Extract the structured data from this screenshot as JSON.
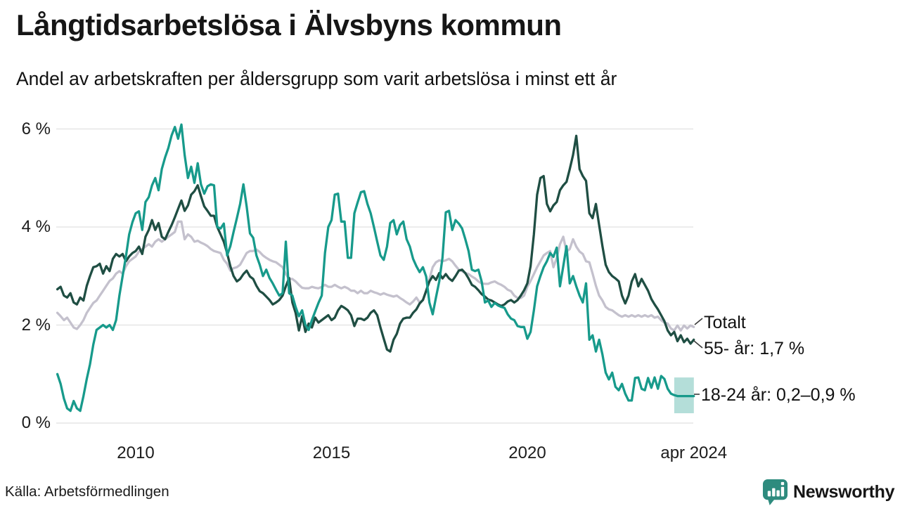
{
  "header": {
    "title": "Långtidsarbetslösa i Älvsbyns kommun",
    "subtitle": "Andel av arbetskraften per åldersgrupp som varit arbetslösa i minst ett år"
  },
  "source": {
    "label": "Källa: Arbetsförmedlingen"
  },
  "branding": {
    "logo_text": "Newsworthy",
    "logo_color": "#2e8b7e"
  },
  "chart_data": {
    "type": "line",
    "title": "Långtidsarbetslösa i Älvsbyns kommun",
    "subtitle": "Andel av arbetskraften per åldersgrupp som varit arbetslösa i minst ett år",
    "unit": "% av arbetskraften",
    "grid": true,
    "x_start": 2008.0,
    "x_step": 0.0833333,
    "x_end": 2024.25,
    "x_axis": {
      "ticks": [
        {
          "label": "2010",
          "t": 2010
        },
        {
          "label": "2015",
          "t": 2015
        },
        {
          "label": "2020",
          "t": 2020
        },
        {
          "label": "apr 2024",
          "t": 2024.25
        }
      ]
    },
    "y_axis": {
      "range": [
        0,
        6.2
      ],
      "ticks": [
        {
          "label": "6 %",
          "value": 6
        },
        {
          "label": "4 %",
          "value": 4
        },
        {
          "label": "2 %",
          "value": 2
        },
        {
          "label": "0 %",
          "value": 0
        }
      ]
    },
    "series": [
      {
        "id": "totalt",
        "name": "Totalt",
        "color": "#c4c1cd",
        "last_value": 1.96,
        "values": [
          2.25,
          2.18,
          2.1,
          2.15,
          2.05,
          1.95,
          1.92,
          2.0,
          2.1,
          2.25,
          2.35,
          2.45,
          2.5,
          2.6,
          2.7,
          2.8,
          2.9,
          2.95,
          3.05,
          3.1,
          3.05,
          3.2,
          3.3,
          3.35,
          3.4,
          3.5,
          3.55,
          3.6,
          3.65,
          3.6,
          3.7,
          3.75,
          3.7,
          3.75,
          3.8,
          3.85,
          3.9,
          4.11,
          4.11,
          3.75,
          3.85,
          3.8,
          3.7,
          3.72,
          3.68,
          3.65,
          3.61,
          3.55,
          3.51,
          3.49,
          3.47,
          3.33,
          3.25,
          3.11,
          3.16,
          3.18,
          3.23,
          3.35,
          3.47,
          3.51,
          3.51,
          3.54,
          3.49,
          3.42,
          3.37,
          3.33,
          3.3,
          3.28,
          3.23,
          3.18,
          3.04,
          2.94,
          2.94,
          2.89,
          2.82,
          2.76,
          2.75,
          2.75,
          2.78,
          2.76,
          2.75,
          2.78,
          2.82,
          2.78,
          2.78,
          2.82,
          2.78,
          2.75,
          2.78,
          2.75,
          2.7,
          2.7,
          2.65,
          2.7,
          2.65,
          2.65,
          2.7,
          2.67,
          2.65,
          2.62,
          2.65,
          2.62,
          2.6,
          2.58,
          2.6,
          2.55,
          2.51,
          2.46,
          2.42,
          2.48,
          2.56,
          2.46,
          2.51,
          2.69,
          2.94,
          3.18,
          3.28,
          3.32,
          3.3,
          3.32,
          3.35,
          3.3,
          3.21,
          3.13,
          3.1,
          3.06,
          3.04,
          2.99,
          2.95,
          2.89,
          2.85,
          2.84,
          2.84,
          2.87,
          2.89,
          2.85,
          2.82,
          2.78,
          2.72,
          2.69,
          2.6,
          2.55,
          2.55,
          2.6,
          2.78,
          2.9,
          3.04,
          3.18,
          3.3,
          3.42,
          3.47,
          3.51,
          3.18,
          3.37,
          3.65,
          3.8,
          3.5,
          3.55,
          3.75,
          3.6,
          3.5,
          3.45,
          3.3,
          3.28,
          3.05,
          2.8,
          2.6,
          2.5,
          2.37,
          2.32,
          2.3,
          2.25,
          2.2,
          2.17,
          2.2,
          2.17,
          2.2,
          2.17,
          2.2,
          2.17,
          2.2,
          2.17,
          2.2,
          2.15,
          2.17,
          2.1,
          2.05,
          2.03,
          1.93,
          1.89,
          1.99,
          1.89,
          1.99,
          1.93,
          1.99,
          1.96
        ]
      },
      {
        "id": "55-ar",
        "name": "55- år",
        "color": "#1f4e43",
        "last_value": 1.7,
        "values": [
          2.73,
          2.78,
          2.6,
          2.56,
          2.65,
          2.46,
          2.42,
          2.56,
          2.5,
          2.8,
          3.0,
          3.18,
          3.2,
          3.25,
          3.05,
          3.2,
          3.1,
          3.35,
          3.45,
          3.4,
          3.45,
          3.3,
          3.4,
          3.47,
          3.51,
          3.6,
          3.45,
          3.8,
          3.94,
          4.14,
          3.94,
          4.08,
          3.8,
          3.75,
          3.9,
          4.04,
          4.2,
          4.37,
          4.54,
          4.33,
          4.44,
          4.66,
          4.73,
          4.85,
          4.63,
          4.42,
          4.33,
          4.23,
          4.23,
          4.0,
          3.85,
          3.7,
          3.47,
          3.2,
          3.0,
          2.89,
          2.94,
          3.04,
          3.11,
          2.99,
          2.94,
          2.8,
          2.69,
          2.65,
          2.58,
          2.51,
          2.42,
          2.46,
          2.51,
          2.6,
          2.79,
          2.96,
          2.46,
          2.25,
          1.89,
          2.18,
          1.86,
          2.03,
          1.95,
          2.15,
          2.05,
          2.1,
          2.15,
          2.2,
          2.1,
          2.15,
          2.3,
          2.39,
          2.35,
          2.3,
          2.2,
          1.98,
          2.13,
          2.13,
          2.1,
          2.15,
          2.25,
          2.3,
          2.2,
          1.95,
          1.72,
          1.5,
          1.46,
          1.7,
          1.82,
          2.03,
          2.13,
          2.15,
          2.15,
          2.25,
          2.32,
          2.44,
          2.51,
          2.7,
          2.89,
          3.0,
          2.92,
          3.06,
          2.95,
          3.04,
          2.95,
          2.9,
          3.0,
          3.11,
          3.13,
          3.06,
          2.95,
          2.82,
          2.78,
          2.71,
          2.63,
          2.58,
          2.52,
          2.5,
          2.46,
          2.42,
          2.39,
          2.42,
          2.48,
          2.51,
          2.46,
          2.51,
          2.6,
          2.71,
          2.85,
          3.2,
          3.85,
          4.66,
          5.0,
          5.04,
          4.47,
          4.32,
          4.44,
          4.51,
          4.75,
          4.85,
          4.92,
          5.18,
          5.47,
          5.86,
          5.18,
          5.04,
          4.94,
          4.28,
          4.18,
          4.47,
          4.04,
          3.61,
          3.23,
          3.08,
          3.0,
          2.95,
          2.89,
          2.6,
          2.44,
          2.6,
          2.89,
          3.04,
          2.79,
          2.94,
          2.82,
          2.7,
          2.53,
          2.42,
          2.32,
          2.2,
          2.08,
          1.89,
          1.79,
          1.86,
          1.67,
          1.79,
          1.65,
          1.72,
          1.62,
          1.7
        ]
      },
      {
        "id": "18-24-ar",
        "name": "18-24 år",
        "color": "#179a8b",
        "last_value_range": [
          0.2,
          0.9
        ],
        "values": [
          1.0,
          0.8,
          0.5,
          0.3,
          0.25,
          0.45,
          0.3,
          0.25,
          0.55,
          0.9,
          1.2,
          1.6,
          1.9,
          1.95,
          2.0,
          1.95,
          2.0,
          1.9,
          2.1,
          2.6,
          3.0,
          3.4,
          3.85,
          4.1,
          4.28,
          4.32,
          3.94,
          4.51,
          4.61,
          4.85,
          5.0,
          4.75,
          5.18,
          5.42,
          5.61,
          5.87,
          6.04,
          5.8,
          6.09,
          5.47,
          5.0,
          5.23,
          4.9,
          5.3,
          4.87,
          4.68,
          4.83,
          4.87,
          4.85,
          4.0,
          3.97,
          4.07,
          3.42,
          3.61,
          3.9,
          4.18,
          4.47,
          4.87,
          4.42,
          3.87,
          3.78,
          3.42,
          3.23,
          3.0,
          3.13,
          2.96,
          2.85,
          2.72,
          2.6,
          2.65,
          3.7,
          2.65,
          2.6,
          2.37,
          2.18,
          2.3,
          2.0,
          1.9,
          2.1,
          2.28,
          2.45,
          2.6,
          3.47,
          4.0,
          4.14,
          4.66,
          4.68,
          4.11,
          4.11,
          3.37,
          3.37,
          4.28,
          4.5,
          4.71,
          4.73,
          4.47,
          4.28,
          4.0,
          3.7,
          3.42,
          3.33,
          3.6,
          4.08,
          4.14,
          3.85,
          4.04,
          4.11,
          3.75,
          3.6,
          3.35,
          3.2,
          3.08,
          3.18,
          2.99,
          2.46,
          2.22,
          2.56,
          2.89,
          3.37,
          4.3,
          4.33,
          3.94,
          4.14,
          4.07,
          3.97,
          3.75,
          3.51,
          3.13,
          3.1,
          3.13,
          2.89,
          2.46,
          2.5,
          2.37,
          2.45,
          2.4,
          2.37,
          2.35,
          2.22,
          2.13,
          2.1,
          1.98,
          1.96,
          1.96,
          1.72,
          1.86,
          2.3,
          2.79,
          3.0,
          3.18,
          3.3,
          3.47,
          3.39,
          3.58,
          2.79,
          3.2,
          3.61,
          2.85,
          3.0,
          2.79,
          2.6,
          2.46,
          2.85,
          1.7,
          1.79,
          1.46,
          1.7,
          1.4,
          1.03,
          0.89,
          1.03,
          0.74,
          0.67,
          0.8,
          0.6,
          0.46,
          0.46,
          0.92,
          0.93,
          0.7,
          0.67,
          0.92,
          0.72,
          0.93,
          0.7,
          0.96,
          0.9,
          0.7,
          0.6,
          0.57,
          0.55,
          0.55,
          0.55,
          0.55,
          0.55,
          0.55
        ]
      }
    ],
    "band": {
      "series": "18-24 år",
      "t_start": 2023.75,
      "t_end": 2024.25,
      "low": 0.2,
      "high": 0.93,
      "color": "rgba(26,154,140,0.33)"
    },
    "annotations": [
      {
        "label": "Totalt"
      },
      {
        "label": "55- år: 1,7 %"
      },
      {
        "label": "18-24 år: 0,2–0,9 %"
      }
    ],
    "legend_position": "right-of-line-ends"
  }
}
